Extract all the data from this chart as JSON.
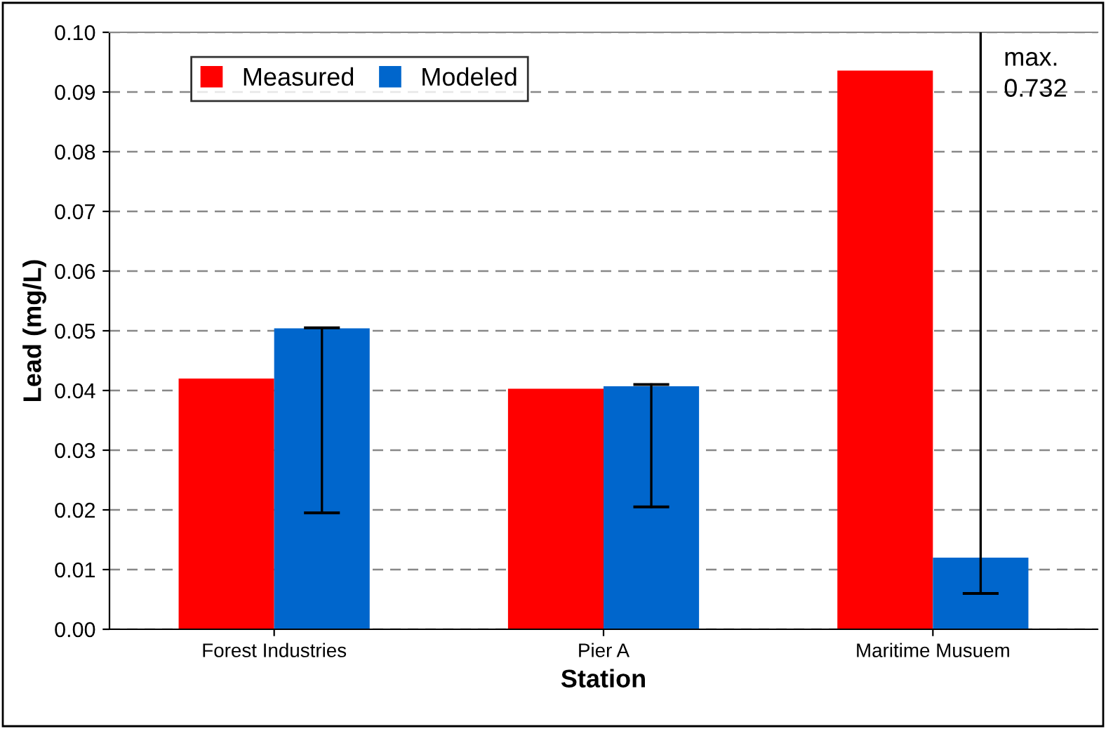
{
  "chart_data": {
    "type": "bar",
    "xlabel": "Station",
    "ylabel": "Lead (mg/L)",
    "categories": [
      "Forest Industries",
      "Pier A",
      "Maritime Musuem"
    ],
    "series": [
      {
        "name": "Measured",
        "color": "#ff0000",
        "values": [
          0.042,
          0.0403,
          0.0936
        ]
      },
      {
        "name": "Modeled",
        "color": "#0066cc",
        "values": [
          0.0504,
          0.0407,
          0.012
        ],
        "errors": [
          [
            0.0195,
            0.0505
          ],
          [
            0.0205,
            0.041
          ],
          [
            0.006,
            0.1
          ]
        ]
      }
    ],
    "ylim": [
      0,
      0.1
    ],
    "yticks": [
      {
        "value": 0,
        "label": "0.00"
      },
      0.01,
      0.02,
      0.03,
      0.04,
      0.05,
      0.06,
      0.07,
      0.08,
      0.09,
      {
        "value": 0.1,
        "label": "0.10"
      }
    ],
    "grid": "y",
    "legend": "top left",
    "annotations": [
      "max.\n0.732"
    ]
  }
}
